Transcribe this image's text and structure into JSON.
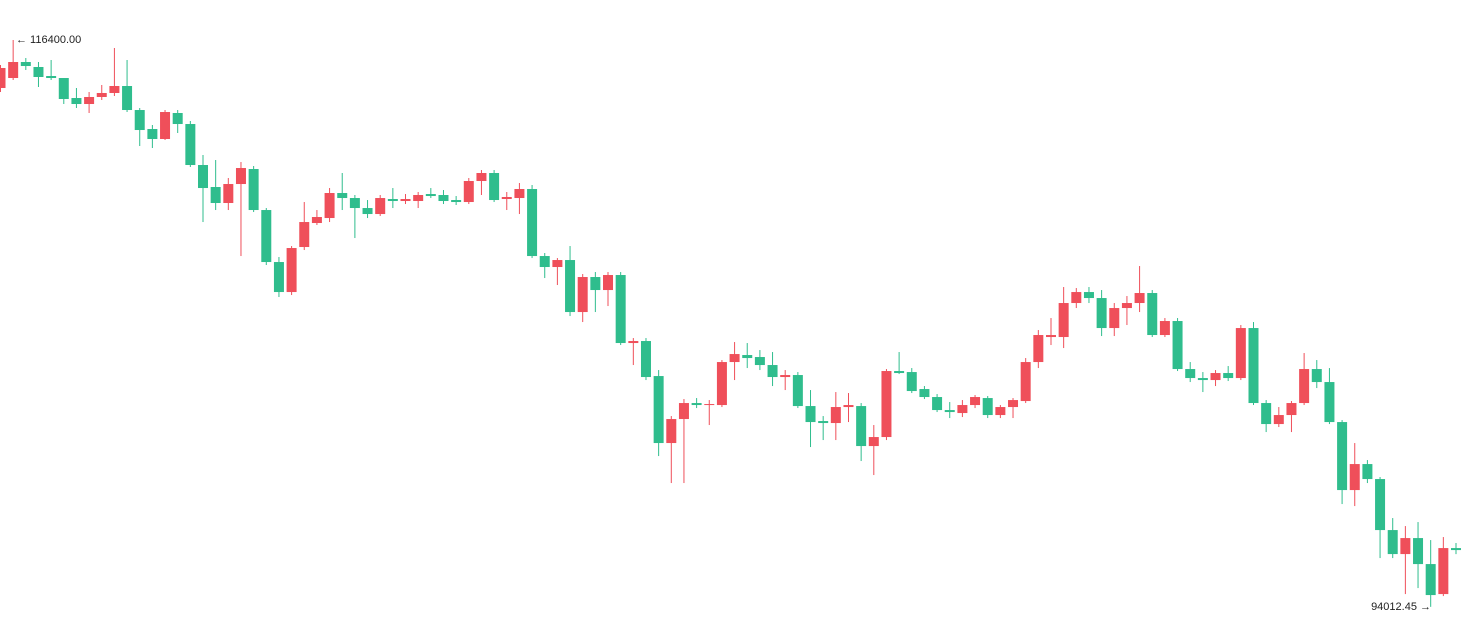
{
  "chart_data": {
    "type": "candlestick",
    "ylim": [
      92940,
      117980
    ],
    "up_color": "#ef4f5a",
    "down_color": "#2fbd8d",
    "open": [
      114504,
      114899,
      115531,
      115334,
      114978,
      114899,
      114109,
      113872,
      114149,
      114307,
      114583,
      113635,
      112885,
      112490,
      113517,
      113082,
      111463,
      110594,
      109962,
      110712,
      111305,
      109685,
      107631,
      106446,
      108224,
      109172,
      109369,
      110357,
      110159,
      109764,
      109527,
      110120,
      110041,
      110041,
      110317,
      110278,
      110080,
      110001,
      110831,
      111147,
      110120,
      110159,
      110515,
      107868,
      107434,
      107710,
      105656,
      107039,
      106525,
      107118,
      104432,
      104511,
      103128,
      100482,
      101430,
      102062,
      101983,
      101983,
      103681,
      103958,
      103879,
      103563,
      103089,
      103168,
      101943,
      101351,
      101272,
      101904,
      101943,
      100363,
      100719,
      103326,
      103286,
      102615,
      102299,
      101785,
      101667,
      101983,
      102259,
      101588,
      101904,
      102141,
      103681,
      104669,
      104669,
      106012,
      106446,
      106209,
      105024,
      105814,
      106012,
      106407,
      104748,
      105301,
      103405,
      103049,
      102970,
      103247,
      103049,
      105024,
      102062,
      101232,
      101588,
      102062,
      103405,
      102891,
      101311,
      98625,
      99652,
      99060,
      97045,
      96097,
      96729,
      95702,
      94517,
      96334
    ],
    "high": [
      115413,
      116400,
      115689,
      115531,
      115610,
      114899,
      114504,
      114346,
      114623,
      116084,
      115610,
      113714,
      113043,
      113635,
      113635,
      113201,
      111858,
      111660,
      110949,
      111581,
      111423,
      109764,
      107829,
      108263,
      110001,
      109685,
      110554,
      111147,
      110278,
      110080,
      110278,
      110554,
      110317,
      110396,
      110554,
      110475,
      110238,
      110949,
      111265,
      111265,
      110396,
      110752,
      110673,
      107987,
      107789,
      108263,
      107157,
      107236,
      107236,
      107236,
      104629,
      104629,
      103365,
      101548,
      102220,
      102259,
      102180,
      103760,
      104471,
      104432,
      104155,
      104076,
      103365,
      103286,
      102575,
      101548,
      102496,
      102457,
      102062,
      101193,
      103405,
      104076,
      103444,
      102733,
      102417,
      102101,
      102180,
      102378,
      102338,
      101983,
      102259,
      103839,
      104945,
      105419,
      106644,
      106604,
      106644,
      106525,
      106012,
      106288,
      107473,
      106525,
      105419,
      105419,
      103681,
      103286,
      103365,
      103523,
      105143,
      105261,
      102180,
      101904,
      102141,
      104037,
      103760,
      103444,
      101390,
      100482,
      99810,
      99139,
      97519,
      97203,
      97361,
      96650,
      96769,
      96532
    ],
    "low": [
      114346,
      114820,
      115215,
      114544,
      114820,
      113872,
      113714,
      113517,
      114030,
      114188,
      113556,
      112213,
      112134,
      112450,
      112727,
      111384,
      109211,
      109685,
      109685,
      107868,
      109606,
      107513,
      106249,
      106328,
      108105,
      109093,
      109211,
      109685,
      108579,
      109369,
      109448,
      109764,
      109922,
      109764,
      110159,
      109922,
      109883,
      109922,
      110278,
      110001,
      109685,
      109527,
      107789,
      106999,
      106723,
      105498,
      105261,
      105656,
      105893,
      104353,
      103563,
      102970,
      99968,
      98902,
      98902,
      101864,
      101193,
      101904,
      102970,
      103444,
      103365,
      102733,
      102575,
      101864,
      100324,
      100600,
      100600,
      101311,
      99771,
      99218,
      100600,
      103207,
      102457,
      102220,
      101706,
      101469,
      101509,
      101864,
      101469,
      101469,
      101469,
      102062,
      103444,
      104353,
      104234,
      105814,
      106012,
      104708,
      104708,
      105143,
      105656,
      104669,
      104669,
      103326,
      102891,
      102496,
      102733,
      102931,
      102970,
      101983,
      100916,
      101114,
      100916,
      101983,
      102654,
      101232,
      98072,
      97993,
      98902,
      95939,
      95939,
      94517,
      94754,
      94012.45,
      94438,
      96097
    ],
    "close": [
      115294,
      115531,
      115373,
      114939,
      114899,
      114070,
      113872,
      114149,
      114307,
      114583,
      113635,
      112845,
      112490,
      113556,
      113082,
      111463,
      110554,
      109962,
      110712,
      111344,
      109685,
      107631,
      106446,
      108184,
      109211,
      109409,
      110357,
      110159,
      109764,
      109527,
      110159,
      110041,
      110120,
      110278,
      110238,
      110041,
      110001,
      110831,
      111147,
      110080,
      110199,
      110515,
      107868,
      107434,
      107710,
      105656,
      107039,
      106525,
      107118,
      104432,
      104511,
      103089,
      100482,
      101430,
      102062,
      101983,
      102022,
      103681,
      103997,
      103839,
      103563,
      103089,
      103168,
      101943,
      101311,
      101272,
      101904,
      101983,
      100363,
      100719,
      103326,
      103247,
      102536,
      102299,
      101785,
      101706,
      101983,
      102299,
      101588,
      101904,
      102180,
      103681,
      104748,
      104748,
      106012,
      106446,
      106209,
      105024,
      105814,
      106012,
      106407,
      104748,
      105301,
      103405,
      103049,
      102970,
      103247,
      103049,
      105024,
      102062,
      101232,
      101588,
      102062,
      103405,
      102891,
      101311,
      98625,
      99652,
      99060,
      97045,
      96097,
      96729,
      95702,
      94478,
      96334,
      96255
    ],
    "annotations": [
      {
        "value": 116400,
        "label": "← 116400.00"
      },
      {
        "value": 94012.45,
        "label": "94012.45 →"
      }
    ]
  }
}
